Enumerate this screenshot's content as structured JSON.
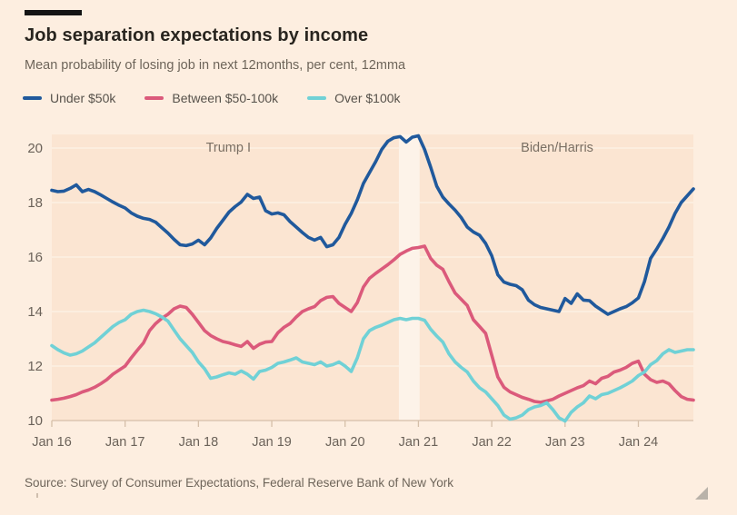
{
  "header": {
    "title": "Job separation expectations by income",
    "subtitle": "Mean probability of losing job in next 12months, per cent, 12mma"
  },
  "footer": {
    "source": "Source: Survey of Consumer Expectations, Federal Reserve Bank of New York"
  },
  "colors": {
    "background": "#fdeee0",
    "plot_background": "#fbe5d2",
    "gridline": "#fdf1e3",
    "axis_line": "#d5bfa9",
    "highlight_band": "#fdf3e9",
    "tick_label": "#6b6259",
    "annotation_label": "#7a6f63"
  },
  "chart_data": {
    "type": "line",
    "title": "Job separation expectations by income",
    "subtitle": "Mean probability of losing job in next 12months, per cent, 12mma",
    "x_start": "Jan 2016",
    "x_frequency": "monthly",
    "xticks": [
      {
        "label": "Jan 16",
        "month_index": 0
      },
      {
        "label": "Jan 17",
        "month_index": 12
      },
      {
        "label": "Jan 18",
        "month_index": 24
      },
      {
        "label": "Jan 19",
        "month_index": 36
      },
      {
        "label": "Jan 20",
        "month_index": 48
      },
      {
        "label": "Jan 21",
        "month_index": 60
      },
      {
        "label": "Jan 22",
        "month_index": 72
      },
      {
        "label": "Jan 23",
        "month_index": 84
      },
      {
        "label": "Jan 24",
        "month_index": 96
      }
    ],
    "yticks": [
      10,
      12,
      14,
      16,
      18,
      20
    ],
    "ylim": [
      10,
      20.5
    ],
    "grid": "horizontal",
    "legend_position": "top",
    "annotations": [
      {
        "label": "Trump I",
        "month_index": 28.9
      },
      {
        "label": "Biden/Harris",
        "month_index": 82.7
      }
    ],
    "highlight_band": {
      "from_month_index": 56.8,
      "to_month_index": 60.2
    },
    "series": [
      {
        "name": "Under $50k",
        "color": "#20599c",
        "values": [
          18.45,
          18.4,
          18.42,
          18.52,
          18.65,
          18.4,
          18.48,
          18.4,
          18.28,
          18.15,
          18.02,
          17.9,
          17.8,
          17.62,
          17.5,
          17.42,
          17.38,
          17.28,
          17.08,
          16.88,
          16.65,
          16.45,
          16.42,
          16.48,
          16.62,
          16.45,
          16.7,
          17.05,
          17.35,
          17.65,
          17.85,
          18.02,
          18.3,
          18.15,
          18.2,
          17.7,
          17.58,
          17.62,
          17.55,
          17.3,
          17.1,
          16.9,
          16.72,
          16.62,
          16.72,
          16.38,
          16.45,
          16.72,
          17.2,
          17.6,
          18.1,
          18.7,
          19.1,
          19.5,
          19.95,
          20.25,
          20.38,
          20.42,
          20.22,
          20.4,
          20.45,
          19.95,
          19.3,
          18.6,
          18.2,
          17.95,
          17.72,
          17.45,
          17.1,
          16.92,
          16.8,
          16.5,
          16.05,
          15.35,
          15.08,
          15.0,
          14.95,
          14.8,
          14.42,
          14.25,
          14.15,
          14.1,
          14.05,
          14.0,
          14.48,
          14.3,
          14.65,
          14.42,
          14.4,
          14.2,
          14.05,
          13.9,
          14.0,
          14.1,
          14.18,
          14.32,
          14.5,
          15.1,
          15.95,
          16.3,
          16.68,
          17.1,
          17.6,
          18.0,
          18.25,
          18.5
        ]
      },
      {
        "name": "Between $50-100k",
        "color": "#db5a7b",
        "values": [
          10.75,
          10.78,
          10.82,
          10.88,
          10.95,
          11.05,
          11.12,
          11.22,
          11.35,
          11.5,
          11.7,
          11.85,
          12.0,
          12.3,
          12.58,
          12.85,
          13.3,
          13.56,
          13.75,
          13.9,
          14.1,
          14.2,
          14.15,
          13.9,
          13.6,
          13.3,
          13.12,
          13.0,
          12.9,
          12.85,
          12.78,
          12.72,
          12.9,
          12.65,
          12.8,
          12.88,
          12.9,
          13.22,
          13.42,
          13.56,
          13.8,
          14.0,
          14.1,
          14.18,
          14.4,
          14.52,
          14.55,
          14.3,
          14.15,
          14.0,
          14.33,
          14.9,
          15.22,
          15.4,
          15.56,
          15.72,
          15.9,
          16.1,
          16.22,
          16.32,
          16.35,
          16.4,
          15.95,
          15.7,
          15.55,
          15.1,
          14.68,
          14.45,
          14.22,
          13.7,
          13.45,
          13.2,
          12.4,
          11.6,
          11.22,
          11.05,
          10.95,
          10.85,
          10.78,
          10.7,
          10.67,
          10.72,
          10.78,
          10.9,
          11.0,
          11.1,
          11.2,
          11.28,
          11.45,
          11.35,
          11.55,
          11.62,
          11.78,
          11.85,
          11.95,
          12.1,
          12.18,
          11.7,
          11.5,
          11.4,
          11.45,
          11.35,
          11.1,
          10.88,
          10.78,
          10.75
        ]
      },
      {
        "name": "Over $100k",
        "color": "#70d1d6",
        "values": [
          12.75,
          12.6,
          12.48,
          12.4,
          12.45,
          12.55,
          12.7,
          12.85,
          13.05,
          13.25,
          13.45,
          13.6,
          13.7,
          13.9,
          14.0,
          14.05,
          14.0,
          13.92,
          13.8,
          13.65,
          13.32,
          13.0,
          12.75,
          12.5,
          12.15,
          11.9,
          11.55,
          11.6,
          11.68,
          11.75,
          11.7,
          11.82,
          11.7,
          11.52,
          11.8,
          11.85,
          11.95,
          12.1,
          12.15,
          12.22,
          12.3,
          12.15,
          12.1,
          12.05,
          12.15,
          12.0,
          12.05,
          12.15,
          12.0,
          11.8,
          12.3,
          13.0,
          13.3,
          13.42,
          13.5,
          13.6,
          13.7,
          13.75,
          13.7,
          13.75,
          13.75,
          13.68,
          13.35,
          13.1,
          12.88,
          12.45,
          12.15,
          11.95,
          11.78,
          11.45,
          11.2,
          11.05,
          10.8,
          10.55,
          10.2,
          10.05,
          10.1,
          10.2,
          10.4,
          10.5,
          10.55,
          10.65,
          10.4,
          10.1,
          9.98,
          10.3,
          10.5,
          10.65,
          10.9,
          10.8,
          10.95,
          11.0,
          11.1,
          11.2,
          11.32,
          11.45,
          11.65,
          11.78,
          12.05,
          12.2,
          12.45,
          12.6,
          12.5,
          12.55,
          12.6,
          12.6
        ]
      }
    ]
  }
}
